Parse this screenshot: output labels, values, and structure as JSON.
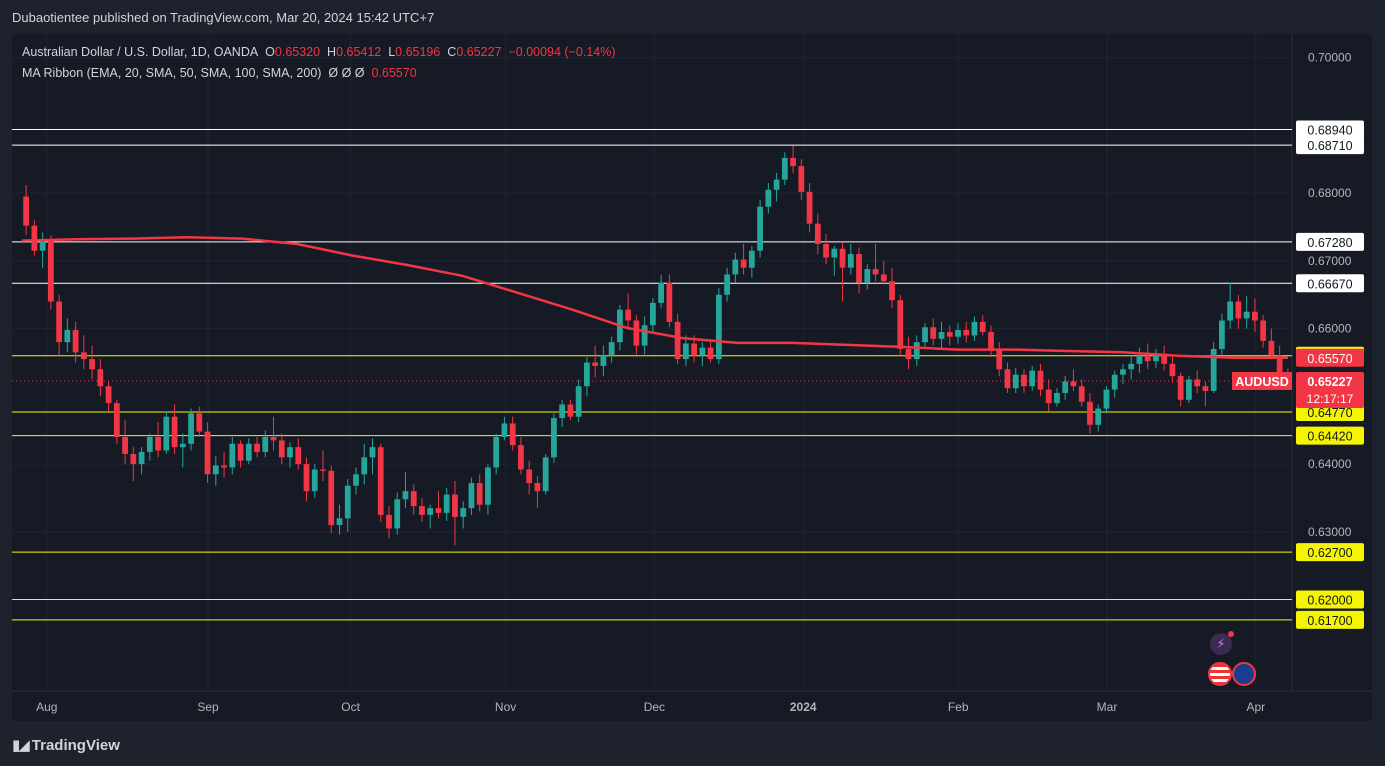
{
  "header": {
    "publisher": "Dubaotientee published on TradingView.com, Mar 20, 2024 15:42 UTC+7"
  },
  "legend": {
    "symbol": "Australian Dollar / U.S. Dollar, 1D, OANDA",
    "o_label": "O",
    "o_value": "0.65320",
    "h_label": "H",
    "h_value": "0.65412",
    "l_label": "L",
    "l_value": "0.65196",
    "c_label": "C",
    "c_value": "0.65227",
    "change": "−0.00094 (−0.14%)",
    "indicator": "MA Ribbon (EMA, 20, SMA, 50, SMA, 100, SMA, 200)",
    "indicator_values": "Ø  Ø  Ø",
    "indicator_last": "0.65570"
  },
  "footer": {
    "brand": "TradingView"
  },
  "colors": {
    "background": "#1e222d",
    "up": "#26a69a",
    "down": "#f23645",
    "ma": "#f23645",
    "level_white": "#ffffff",
    "level_yellow": "#f5f500",
    "price_line": "#f23645",
    "label_yellow_bg": "#f5f500",
    "label_red_bg": "#f23645"
  },
  "chart_data": {
    "type": "candlestick",
    "symbol": "AUDUSD",
    "timeframe": "1D",
    "ylim": [
      0.6065,
      0.7035
    ],
    "x_tick_labels": [
      "Aug",
      "Sep",
      "Oct",
      "Nov",
      "Dec",
      "2024",
      "Feb",
      "Mar",
      "Apr"
    ],
    "y_tick_labels": [
      "0.70000",
      "0.68000",
      "0.67000",
      "0.66000",
      "0.64000",
      "0.63000"
    ],
    "y_tick_values": [
      0.7,
      0.68,
      0.67,
      0.66,
      0.64,
      0.63
    ],
    "horizontal_levels": [
      {
        "value": 0.6894,
        "label": "0.68940",
        "color": "white"
      },
      {
        "value": 0.6871,
        "label": "0.68710",
        "color": "white"
      },
      {
        "value": 0.6728,
        "label": "0.67280",
        "color": "white"
      },
      {
        "value": 0.6667,
        "label": "0.66670",
        "color": "white"
      },
      {
        "value": 0.656,
        "label": "0.65600",
        "color": "yellow"
      },
      {
        "value": 0.6477,
        "label": "0.64770",
        "color": "yellow"
      },
      {
        "value": 0.6442,
        "label": "0.64420",
        "color": "yellow"
      },
      {
        "value": 0.627,
        "label": "0.62700",
        "color": "yellow"
      },
      {
        "value": 0.62,
        "label": "0.62000",
        "color": "yellow"
      },
      {
        "value": 0.617,
        "label": "0.61700",
        "color": "yellow"
      }
    ],
    "ma_label": {
      "value": 0.6557,
      "label": "0.65570"
    },
    "last_price": {
      "value": 0.65227,
      "label": "0.65227",
      "symbol_label": "AUDUSD",
      "countdown": "12:17:17"
    },
    "ma_series": [
      0.673,
      0.6732,
      0.6733,
      0.6735,
      0.6733,
      0.6725,
      0.6708,
      0.6694,
      0.6678,
      0.6653,
      0.6628,
      0.6601,
      0.6586,
      0.6579,
      0.6579,
      0.6576,
      0.6573,
      0.6569,
      0.6569,
      0.6567,
      0.6565,
      0.656,
      0.6557,
      0.6557
    ],
    "candles": [
      [
        0.6795,
        0.6812,
        0.6738,
        0.6752
      ],
      [
        0.6752,
        0.676,
        0.6708,
        0.6715
      ],
      [
        0.6715,
        0.6742,
        0.669,
        0.6732
      ],
      [
        0.6732,
        0.6738,
        0.6628,
        0.664
      ],
      [
        0.664,
        0.665,
        0.656,
        0.658
      ],
      [
        0.658,
        0.6615,
        0.6565,
        0.6598
      ],
      [
        0.6598,
        0.661,
        0.655,
        0.6565
      ],
      [
        0.6565,
        0.659,
        0.654,
        0.6555
      ],
      [
        0.6555,
        0.6575,
        0.6525,
        0.654
      ],
      [
        0.654,
        0.6555,
        0.65,
        0.6515
      ],
      [
        0.6515,
        0.6522,
        0.6478,
        0.649
      ],
      [
        0.649,
        0.6495,
        0.643,
        0.644
      ],
      [
        0.644,
        0.6465,
        0.64,
        0.6415
      ],
      [
        0.6415,
        0.6425,
        0.6375,
        0.64
      ],
      [
        0.64,
        0.6425,
        0.6385,
        0.6418
      ],
      [
        0.6418,
        0.6445,
        0.6405,
        0.644
      ],
      [
        0.644,
        0.6462,
        0.641,
        0.642
      ],
      [
        0.642,
        0.6478,
        0.6415,
        0.647
      ],
      [
        0.647,
        0.6488,
        0.6415,
        0.6425
      ],
      [
        0.6425,
        0.6445,
        0.6395,
        0.643
      ],
      [
        0.643,
        0.6482,
        0.642,
        0.6475
      ],
      [
        0.6475,
        0.6485,
        0.644,
        0.6448
      ],
      [
        0.6448,
        0.6462,
        0.6372,
        0.6385
      ],
      [
        0.6385,
        0.6412,
        0.6368,
        0.6398
      ],
      [
        0.6398,
        0.6418,
        0.638,
        0.6395
      ],
      [
        0.6395,
        0.644,
        0.6385,
        0.643
      ],
      [
        0.643,
        0.6435,
        0.6395,
        0.6405
      ],
      [
        0.6405,
        0.6438,
        0.64,
        0.643
      ],
      [
        0.643,
        0.644,
        0.641,
        0.6418
      ],
      [
        0.6418,
        0.645,
        0.641,
        0.644
      ],
      [
        0.644,
        0.647,
        0.642,
        0.6435
      ],
      [
        0.6435,
        0.6445,
        0.64,
        0.641
      ],
      [
        0.641,
        0.6432,
        0.6395,
        0.6425
      ],
      [
        0.6425,
        0.6438,
        0.6392,
        0.64
      ],
      [
        0.64,
        0.641,
        0.6345,
        0.636
      ],
      [
        0.636,
        0.64,
        0.635,
        0.6392
      ],
      [
        0.6392,
        0.642,
        0.6375,
        0.639
      ],
      [
        0.639,
        0.6398,
        0.6298,
        0.631
      ],
      [
        0.631,
        0.634,
        0.6296,
        0.632
      ],
      [
        0.632,
        0.6378,
        0.63,
        0.6368
      ],
      [
        0.6368,
        0.6395,
        0.6355,
        0.6385
      ],
      [
        0.6385,
        0.643,
        0.637,
        0.641
      ],
      [
        0.641,
        0.6438,
        0.6385,
        0.6425
      ],
      [
        0.6425,
        0.643,
        0.6315,
        0.6325
      ],
      [
        0.6325,
        0.6338,
        0.629,
        0.6305
      ],
      [
        0.6305,
        0.6358,
        0.6296,
        0.6348
      ],
      [
        0.6348,
        0.6388,
        0.6335,
        0.636
      ],
      [
        0.636,
        0.637,
        0.6325,
        0.6338
      ],
      [
        0.6338,
        0.635,
        0.6315,
        0.6325
      ],
      [
        0.6325,
        0.634,
        0.6305,
        0.6335
      ],
      [
        0.6335,
        0.636,
        0.632,
        0.6328
      ],
      [
        0.6328,
        0.6365,
        0.6316,
        0.6355
      ],
      [
        0.6355,
        0.6375,
        0.628,
        0.6322
      ],
      [
        0.6322,
        0.6345,
        0.6305,
        0.6335
      ],
      [
        0.6335,
        0.638,
        0.6325,
        0.6372
      ],
      [
        0.6372,
        0.6385,
        0.633,
        0.634
      ],
      [
        0.634,
        0.64,
        0.6325,
        0.6395
      ],
      [
        0.6395,
        0.6445,
        0.6385,
        0.644
      ],
      [
        0.644,
        0.647,
        0.6435,
        0.646
      ],
      [
        0.646,
        0.647,
        0.642,
        0.6428
      ],
      [
        0.6428,
        0.644,
        0.6385,
        0.6392
      ],
      [
        0.6392,
        0.6405,
        0.6355,
        0.6372
      ],
      [
        0.6372,
        0.6382,
        0.6335,
        0.636
      ],
      [
        0.636,
        0.6415,
        0.6355,
        0.641
      ],
      [
        0.641,
        0.6475,
        0.6402,
        0.6468
      ],
      [
        0.6468,
        0.6495,
        0.6455,
        0.6488
      ],
      [
        0.6488,
        0.6495,
        0.6465,
        0.647
      ],
      [
        0.647,
        0.6525,
        0.6462,
        0.6515
      ],
      [
        0.6515,
        0.6558,
        0.65,
        0.655
      ],
      [
        0.655,
        0.6575,
        0.6528,
        0.6545
      ],
      [
        0.6545,
        0.6575,
        0.653,
        0.656
      ],
      [
        0.656,
        0.6588,
        0.655,
        0.658
      ],
      [
        0.658,
        0.6635,
        0.6568,
        0.6628
      ],
      [
        0.6628,
        0.6652,
        0.6602,
        0.6612
      ],
      [
        0.6612,
        0.662,
        0.6562,
        0.6575
      ],
      [
        0.6575,
        0.6618,
        0.6562,
        0.6605
      ],
      [
        0.6605,
        0.6645,
        0.6595,
        0.6638
      ],
      [
        0.6638,
        0.668,
        0.663,
        0.6668
      ],
      [
        0.6668,
        0.668,
        0.6602,
        0.661
      ],
      [
        0.661,
        0.6622,
        0.6548,
        0.6555
      ],
      [
        0.6555,
        0.659,
        0.6545,
        0.6578
      ],
      [
        0.6578,
        0.659,
        0.655,
        0.656
      ],
      [
        0.656,
        0.658,
        0.6545,
        0.6572
      ],
      [
        0.6572,
        0.658,
        0.655,
        0.6555
      ],
      [
        0.6555,
        0.666,
        0.6548,
        0.665
      ],
      [
        0.665,
        0.669,
        0.664,
        0.668
      ],
      [
        0.668,
        0.6712,
        0.6668,
        0.6702
      ],
      [
        0.6702,
        0.6725,
        0.668,
        0.669
      ],
      [
        0.669,
        0.6722,
        0.6675,
        0.6715
      ],
      [
        0.6715,
        0.679,
        0.6705,
        0.678
      ],
      [
        0.678,
        0.6815,
        0.677,
        0.6805
      ],
      [
        0.6805,
        0.683,
        0.6788,
        0.682
      ],
      [
        0.682,
        0.686,
        0.6812,
        0.6852
      ],
      [
        0.6852,
        0.687,
        0.683,
        0.684
      ],
      [
        0.684,
        0.685,
        0.679,
        0.6802
      ],
      [
        0.6802,
        0.6815,
        0.6742,
        0.6755
      ],
      [
        0.6755,
        0.677,
        0.671,
        0.6725
      ],
      [
        0.6725,
        0.674,
        0.6695,
        0.6705
      ],
      [
        0.6705,
        0.6722,
        0.6678,
        0.6718
      ],
      [
        0.6718,
        0.6728,
        0.664,
        0.669
      ],
      [
        0.669,
        0.6725,
        0.668,
        0.671
      ],
      [
        0.671,
        0.672,
        0.6652,
        0.6668
      ],
      [
        0.6668,
        0.6695,
        0.6658,
        0.6688
      ],
      [
        0.6688,
        0.6725,
        0.667,
        0.668
      ],
      [
        0.668,
        0.67,
        0.6665,
        0.667
      ],
      [
        0.667,
        0.669,
        0.663,
        0.6642
      ],
      [
        0.6642,
        0.665,
        0.656,
        0.657
      ],
      [
        0.657,
        0.6588,
        0.654,
        0.6555
      ],
      [
        0.6555,
        0.659,
        0.6545,
        0.658
      ],
      [
        0.658,
        0.6608,
        0.657,
        0.6602
      ],
      [
        0.6602,
        0.6615,
        0.6575,
        0.6585
      ],
      [
        0.6585,
        0.661,
        0.657,
        0.6595
      ],
      [
        0.6595,
        0.6605,
        0.6575,
        0.6588
      ],
      [
        0.6588,
        0.6608,
        0.6578,
        0.6598
      ],
      [
        0.6598,
        0.661,
        0.658,
        0.659
      ],
      [
        0.659,
        0.6618,
        0.6582,
        0.661
      ],
      [
        0.661,
        0.662,
        0.659,
        0.6595
      ],
      [
        0.6595,
        0.6605,
        0.6558,
        0.657
      ],
      [
        0.657,
        0.658,
        0.653,
        0.654
      ],
      [
        0.654,
        0.655,
        0.6505,
        0.6512
      ],
      [
        0.6512,
        0.6542,
        0.6505,
        0.6532
      ],
      [
        0.6532,
        0.654,
        0.6505,
        0.6515
      ],
      [
        0.6515,
        0.6545,
        0.6508,
        0.6538
      ],
      [
        0.6538,
        0.6548,
        0.65,
        0.651
      ],
      [
        0.651,
        0.6525,
        0.6478,
        0.649
      ],
      [
        0.649,
        0.6512,
        0.6485,
        0.6505
      ],
      [
        0.6505,
        0.653,
        0.6495,
        0.6522
      ],
      [
        0.6522,
        0.654,
        0.6508,
        0.6515
      ],
      [
        0.6515,
        0.6525,
        0.6485,
        0.6492
      ],
      [
        0.6492,
        0.6505,
        0.6445,
        0.6458
      ],
      [
        0.6458,
        0.6488,
        0.6448,
        0.6482
      ],
      [
        0.6482,
        0.6515,
        0.6475,
        0.651
      ],
      [
        0.651,
        0.6538,
        0.6498,
        0.6532
      ],
      [
        0.6532,
        0.6548,
        0.6518,
        0.654
      ],
      [
        0.654,
        0.656,
        0.6525,
        0.6548
      ],
      [
        0.6548,
        0.6572,
        0.6535,
        0.656
      ],
      [
        0.656,
        0.6578,
        0.654,
        0.6552
      ],
      [
        0.6552,
        0.657,
        0.6542,
        0.6562
      ],
      [
        0.6562,
        0.6575,
        0.6538,
        0.6548
      ],
      [
        0.6548,
        0.6558,
        0.652,
        0.653
      ],
      [
        0.653,
        0.6535,
        0.6485,
        0.6495
      ],
      [
        0.6495,
        0.653,
        0.649,
        0.6525
      ],
      [
        0.6525,
        0.6538,
        0.6505,
        0.6515
      ],
      [
        0.6515,
        0.6522,
        0.6485,
        0.6508
      ],
      [
        0.6508,
        0.658,
        0.6505,
        0.657
      ],
      [
        0.657,
        0.6622,
        0.656,
        0.6612
      ],
      [
        0.6612,
        0.6668,
        0.66,
        0.664
      ],
      [
        0.664,
        0.665,
        0.66,
        0.6615
      ],
      [
        0.6615,
        0.6648,
        0.66,
        0.6625
      ],
      [
        0.6625,
        0.6645,
        0.6595,
        0.6612
      ],
      [
        0.6612,
        0.662,
        0.6572,
        0.6582
      ],
      [
        0.6582,
        0.66,
        0.6555,
        0.656
      ],
      [
        0.656,
        0.6575,
        0.652,
        0.6532
      ],
      [
        0.6532,
        0.6541,
        0.652,
        0.6523
      ]
    ]
  }
}
